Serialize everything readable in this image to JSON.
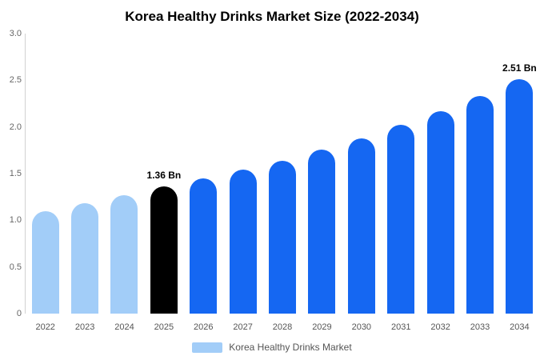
{
  "chart_data": {
    "type": "bar",
    "title": "Korea Healthy Drinks Market Size (2022-2034)",
    "categories": [
      "2022",
      "2023",
      "2024",
      "2025",
      "2026",
      "2027",
      "2028",
      "2029",
      "2030",
      "2031",
      "2032",
      "2033",
      "2034"
    ],
    "values": [
      1.1,
      1.18,
      1.27,
      1.36,
      1.45,
      1.54,
      1.64,
      1.76,
      1.88,
      2.02,
      2.17,
      2.33,
      2.51
    ],
    "unit": "Bn",
    "point_labels": [
      "",
      "",
      "",
      "1.36 Bn",
      "",
      "",
      "",
      "",
      "",
      "",
      "",
      "",
      "2.51 Bn"
    ],
    "bar_colors": [
      "light",
      "light",
      "light",
      "highlight",
      "primary",
      "primary",
      "primary",
      "primary",
      "primary",
      "primary",
      "primary",
      "primary",
      "primary"
    ],
    "colors": {
      "light": "#a2cdf8",
      "primary": "#1567f2",
      "highlight": "#000000",
      "axis_line": "#d2d2d2",
      "tick_text": "#666666",
      "label_text": "#555555"
    },
    "ylim": [
      0,
      3
    ],
    "y_ticks": [
      {
        "value": 3,
        "label": "3.0"
      },
      {
        "value": 2.5,
        "label": "2.5"
      },
      {
        "value": 2,
        "label": "2.0"
      },
      {
        "value": 1.5,
        "label": "1.5"
      },
      {
        "value": 1,
        "label": "1.0"
      },
      {
        "value": 0.5,
        "label": "0.5"
      },
      {
        "value": 0,
        "label": "0"
      }
    ],
    "grid": false,
    "xlabel": "",
    "ylabel": "",
    "legend": "Korea Healthy Drinks Market",
    "legend_position": "bottom"
  }
}
